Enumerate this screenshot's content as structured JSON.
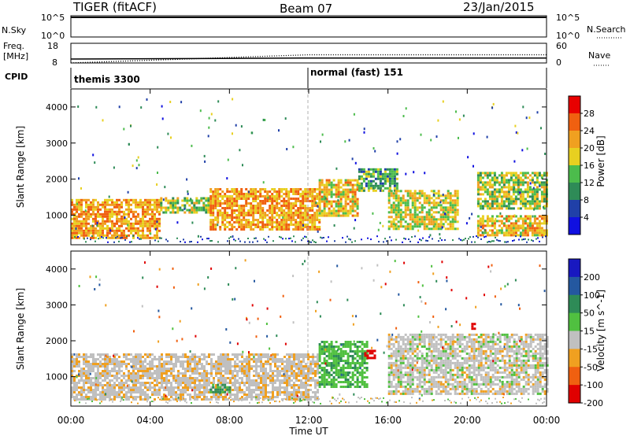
{
  "header": {
    "title": "TIGER (fitACF)",
    "beam": "Beam 07",
    "date": "23/Jan/2015"
  },
  "nsky_panel": {
    "left_label": "N.Sky",
    "left_ticks": [
      "10^5",
      "10^0"
    ],
    "right_ticks": [
      "10^5",
      "10^0"
    ],
    "right_label": "N.Search"
  },
  "freq_panel": {
    "left_label_line1": "Freq.",
    "left_label_line2": "[MHz]",
    "left_ticks": [
      "18",
      "8"
    ],
    "right_ticks": [
      "60",
      "0"
    ],
    "right_label": "Nave"
  },
  "cpid_panel": {
    "label": "CPID",
    "segments": [
      {
        "label": "themis 3300",
        "start_hour": 0
      },
      {
        "label": "normal (fast) 151",
        "start_hour": 12
      }
    ]
  },
  "x_axis": {
    "label": "Time UT",
    "ticks": [
      "00:00",
      "04:00",
      "08:00",
      "12:00",
      "16:00",
      "20:00",
      "00:00"
    ]
  },
  "power_panel": {
    "y_label": "Slant Range [km]",
    "y_ticks": [
      "1000",
      "2000",
      "3000",
      "4000"
    ],
    "colorbar_label": "Power [dB]",
    "colorbar_ticks": [
      "4",
      "8",
      "12",
      "16",
      "20",
      "24",
      "28"
    ],
    "colors": [
      "#1010e0",
      "#2040a8",
      "#2e8b57",
      "#4cbc4c",
      "#e8d020",
      "#f0a020",
      "#f06010",
      "#e80000"
    ]
  },
  "velocity_panel": {
    "y_label": "Slant Range [km]",
    "y_ticks": [
      "1000",
      "2000",
      "3000",
      "4000"
    ],
    "colorbar_label": "Velocity [m s^-1]",
    "colorbar_ticks": [
      "200",
      "100",
      "50",
      "15",
      "-15",
      "-50",
      "-100",
      "-200"
    ],
    "colors": [
      "#1818c0",
      "#2458a0",
      "#2e8b57",
      "#50c040",
      "#c0c0c0",
      "#f0a020",
      "#f06010",
      "#e00000"
    ]
  },
  "chart_data": {
    "type": "heatmap",
    "x_range_hours": [
      0,
      24
    ],
    "y_range_km": [
      180,
      4500
    ],
    "power_regions": [
      {
        "start_hour": 0.0,
        "end_hour": 4.5,
        "range_min_km": 400,
        "range_max_km": 1450,
        "typical_power_db": 22
      },
      {
        "start_hour": 4.5,
        "end_hour": 7.0,
        "range_min_km": 1100,
        "range_max_km": 1500,
        "typical_power_db": 16
      },
      {
        "start_hour": 7.0,
        "end_hour": 12.5,
        "range_min_km": 600,
        "range_max_km": 1750,
        "typical_power_db": 22
      },
      {
        "start_hour": 12.5,
        "end_hour": 14.5,
        "range_min_km": 1000,
        "range_max_km": 2000,
        "typical_power_db": 20
      },
      {
        "start_hour": 14.5,
        "end_hour": 16.5,
        "range_min_km": 1700,
        "range_max_km": 2300,
        "typical_power_db": 12
      },
      {
        "start_hour": 16.0,
        "end_hour": 19.5,
        "range_min_km": 600,
        "range_max_km": 1700,
        "typical_power_db": 18
      },
      {
        "start_hour": 20.5,
        "end_hour": 24.0,
        "range_min_km": 1200,
        "range_max_km": 2200,
        "typical_power_db": 16
      },
      {
        "start_hour": 20.5,
        "end_hour": 24.0,
        "range_min_km": 450,
        "range_max_km": 1000,
        "typical_power_db": 20
      }
    ],
    "velocity_regions": [
      {
        "start_hour": 0.0,
        "end_hour": 12.5,
        "range_min_km": 400,
        "range_max_km": 1650,
        "typical_velocity_ms": -5
      },
      {
        "start_hour": 7.0,
        "end_hour": 8.0,
        "range_min_km": 550,
        "range_max_km": 800,
        "typical_velocity_ms": 60
      },
      {
        "start_hour": 12.5,
        "end_hour": 15.0,
        "range_min_km": 700,
        "range_max_km": 2000,
        "typical_velocity_ms": 40
      },
      {
        "start_hour": 14.8,
        "end_hour": 15.3,
        "range_min_km": 1500,
        "range_max_km": 1750,
        "typical_velocity_ms": -220
      },
      {
        "start_hour": 16.0,
        "end_hour": 24.0,
        "range_min_km": 500,
        "range_max_km": 2200,
        "typical_velocity_ms": 0
      },
      {
        "start_hour": 20.2,
        "end_hour": 20.4,
        "range_min_km": 2350,
        "range_max_km": 2500,
        "typical_velocity_ms": -180
      }
    ],
    "frequency_mhz": [
      {
        "hour": 0,
        "value": 10
      },
      {
        "hour": 12,
        "value": 10.5
      },
      {
        "hour": 24,
        "value": 10.5
      }
    ],
    "nave": [
      {
        "hour": 0,
        "value": 0
      },
      {
        "hour": 12,
        "value": 25
      },
      {
        "hour": 24,
        "value": 25
      }
    ]
  }
}
